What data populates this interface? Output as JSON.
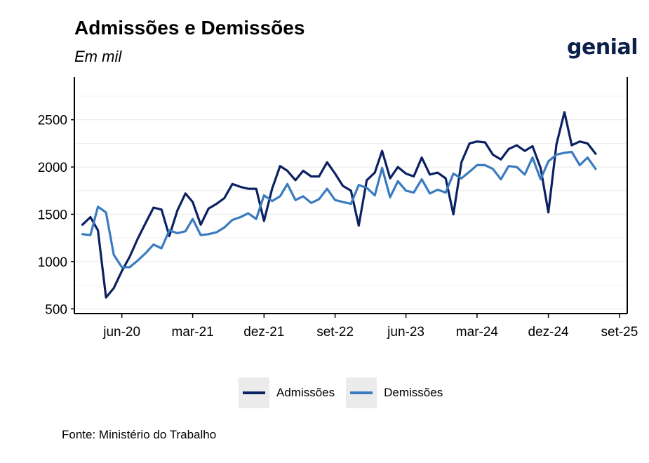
{
  "header": {
    "title": "Admissões e Demissões",
    "subtitle": "Em mil",
    "logo_text": "genial"
  },
  "footer": {
    "source": "Fonte: Ministério do Trabalho"
  },
  "colors": {
    "admissoes": "#0b2161",
    "demissoes": "#3a7bbf"
  },
  "chart_data": {
    "type": "line",
    "xlabel": "",
    "ylabel": "",
    "ylim": [
      450,
      2950
    ],
    "yticks": [
      500,
      1000,
      1500,
      2000,
      2500
    ],
    "xticks": [
      {
        "label": "jun-20",
        "date": "2020-06-01"
      },
      {
        "label": "mar-21",
        "date": "2021-03-01"
      },
      {
        "label": "dez-21",
        "date": "2021-12-01"
      },
      {
        "label": "set-22",
        "date": "2022-09-01"
      },
      {
        "label": "jun-23",
        "date": "2023-06-01"
      },
      {
        "label": "mar-24",
        "date": "2024-03-01"
      },
      {
        "label": "dez-24",
        "date": "2024-12-01"
      },
      {
        "label": "set-25",
        "date": "2025-09-01"
      }
    ],
    "grid": true,
    "legend_position": "bottom",
    "x": [
      "2020-01",
      "2020-02",
      "2020-03",
      "2020-04",
      "2020-05",
      "2020-06",
      "2020-07",
      "2020-08",
      "2020-09",
      "2020-10",
      "2020-11",
      "2020-12",
      "2021-01",
      "2021-02",
      "2021-03",
      "2021-04",
      "2021-05",
      "2021-06",
      "2021-07",
      "2021-08",
      "2021-09",
      "2021-10",
      "2021-11",
      "2021-12",
      "2022-01",
      "2022-02",
      "2022-03",
      "2022-04",
      "2022-05",
      "2022-06",
      "2022-07",
      "2022-08",
      "2022-09",
      "2022-10",
      "2022-11",
      "2022-12",
      "2023-01",
      "2023-02",
      "2023-03",
      "2023-04",
      "2023-05",
      "2023-06",
      "2023-07",
      "2023-08",
      "2023-09",
      "2023-10",
      "2023-11",
      "2023-12",
      "2024-01",
      "2024-02",
      "2024-03",
      "2024-04",
      "2024-05",
      "2024-06",
      "2024-07",
      "2024-08",
      "2024-09",
      "2024-10",
      "2024-11",
      "2024-12",
      "2025-01",
      "2025-02",
      "2025-03",
      "2025-04",
      "2025-05",
      "2025-06"
    ],
    "series": [
      {
        "name": "Admissões",
        "values": [
          1390,
          1470,
          1330,
          620,
          720,
          900,
          1050,
          1240,
          1410,
          1570,
          1550,
          1270,
          1540,
          1720,
          1630,
          1390,
          1560,
          1610,
          1670,
          1820,
          1790,
          1770,
          1770,
          1430,
          1770,
          2010,
          1960,
          1860,
          1960,
          1900,
          1900,
          2050,
          1930,
          1800,
          1750,
          1380,
          1860,
          1940,
          2170,
          1880,
          2000,
          1930,
          1900,
          2100,
          1920,
          1940,
          1880,
          1500,
          2050,
          2250,
          2270,
          2260,
          2130,
          2080,
          2190,
          2230,
          2170,
          2220,
          1990,
          1520,
          2240,
          2580,
          2230,
          2270,
          2250,
          2140
        ]
      },
      {
        "name": "Demissões",
        "values": [
          1290,
          1280,
          1580,
          1520,
          1070,
          940,
          940,
          1010,
          1090,
          1180,
          1140,
          1330,
          1300,
          1320,
          1450,
          1280,
          1290,
          1310,
          1360,
          1440,
          1470,
          1510,
          1450,
          1700,
          1640,
          1690,
          1820,
          1650,
          1690,
          1620,
          1660,
          1770,
          1650,
          1630,
          1610,
          1810,
          1780,
          1700,
          1990,
          1680,
          1850,
          1750,
          1730,
          1870,
          1720,
          1760,
          1730,
          1930,
          1880,
          1950,
          2020,
          2020,
          1980,
          1870,
          2010,
          2000,
          1920,
          2100,
          1870,
          2060,
          2130,
          2150,
          2160,
          2020,
          2100,
          1980
        ]
      }
    ]
  }
}
